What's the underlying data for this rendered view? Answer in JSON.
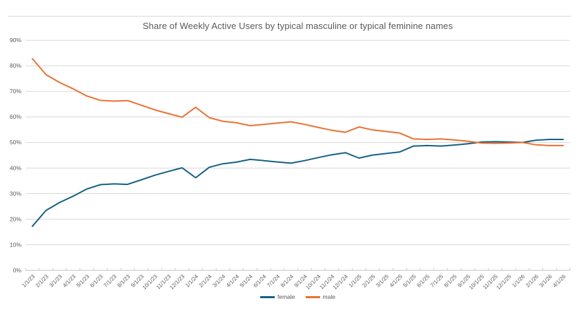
{
  "chart_data": {
    "type": "line",
    "title": "Share of Weekly Active Users by typical masculine or typical feminine names",
    "xlabel": "",
    "ylabel": "",
    "ylim": [
      0,
      90
    ],
    "yticks": [
      0,
      10,
      20,
      30,
      40,
      50,
      60,
      70,
      80,
      90
    ],
    "ytick_format": "percent",
    "grid": true,
    "legend_position": "bottom-center",
    "x": [
      "1/1/23",
      "2/1/23",
      "3/1/23",
      "4/1/23",
      "5/1/23",
      "6/1/23",
      "7/1/23",
      "8/1/23",
      "9/1/23",
      "10/1/23",
      "11/1/23",
      "12/1/23",
      "1/1/24",
      "2/1/24",
      "3/1/24",
      "4/1/24",
      "5/1/24",
      "6/1/24",
      "7/1/24",
      "8/1/24",
      "9/1/24",
      "10/1/24",
      "11/1/24",
      "12/1/24",
      "1/1/25",
      "2/1/25",
      "3/1/25",
      "4/1/25",
      "5/1/25",
      "6/1/25",
      "7/1/25",
      "8/1/25",
      "9/1/25",
      "10/1/25",
      "11/1/25",
      "12/1/25",
      "1/1/26",
      "2/1/26",
      "3/1/26",
      "4/1/26"
    ],
    "series": [
      {
        "name": "female",
        "color": "#156082",
        "values": [
          17.2,
          23.4,
          26.5,
          29.0,
          31.8,
          33.5,
          33.8,
          33.6,
          35.4,
          37.2,
          38.7,
          40.1,
          36.2,
          40.3,
          41.7,
          42.3,
          43.4,
          42.9,
          42.4,
          41.9,
          42.9,
          44.1,
          45.2,
          46.0,
          43.9,
          45.1,
          45.7,
          46.3,
          48.6,
          48.8,
          48.6,
          49.0,
          49.5,
          50.2,
          50.3,
          50.2,
          50.0,
          50.9,
          51.2,
          51.2
        ]
      },
      {
        "name": "male",
        "color": "#E97132",
        "values": [
          82.8,
          76.6,
          73.5,
          71.0,
          68.2,
          66.5,
          66.2,
          66.4,
          64.6,
          62.8,
          61.3,
          59.9,
          63.8,
          59.7,
          58.3,
          57.7,
          56.6,
          57.1,
          57.6,
          58.1,
          57.1,
          55.9,
          54.8,
          54.0,
          56.1,
          54.9,
          54.3,
          53.7,
          51.4,
          51.2,
          51.4,
          51.0,
          50.5,
          49.8,
          49.7,
          49.8,
          50.0,
          49.1,
          48.8,
          48.8
        ]
      }
    ],
    "axis_colors": {
      "gridline": "#d9d9d9",
      "axis_line": "#c6c6c6",
      "tick": "#bfbfbf",
      "label_text": "#595959"
    }
  }
}
